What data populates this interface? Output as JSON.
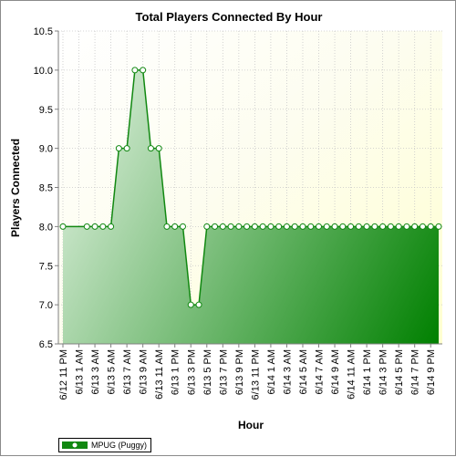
{
  "chart_data": {
    "type": "area",
    "title": "Total Players Connected By Hour",
    "xlabel": "Hour",
    "ylabel": "Players Connected",
    "ylim": [
      6.5,
      10.5
    ],
    "y_ticks": [
      "6.5",
      "7.0",
      "7.5",
      "8.0",
      "8.5",
      "9.0",
      "9.5",
      "10.0",
      "10.5"
    ],
    "x_start_label": "6/12 11 PM",
    "x_labels": [
      "6/12 11 PM",
      "6/13 1 AM",
      "6/13 3 AM",
      "6/13 5 AM",
      "6/13 7 AM",
      "6/13 9 AM",
      "6/13 11 AM",
      "6/13 1 PM",
      "6/13 3 PM",
      "6/13 5 PM",
      "6/13 7 PM",
      "6/13 9 PM",
      "6/13 11 PM",
      "6/14 1 AM",
      "6/14 3 AM",
      "6/14 5 AM",
      "6/14 7 AM",
      "6/14 9 AM",
      "6/14 11 AM",
      "6/14 1 PM",
      "6/14 3 PM",
      "6/14 5 PM",
      "6/14 7 PM",
      "6/14 9 PM"
    ],
    "grid": true,
    "legend_position": "bottom-left",
    "series": [
      {
        "name": "MPUG (Puggy)",
        "color": "#118811",
        "points": [
          [
            0,
            8
          ],
          [
            3,
            8
          ],
          [
            4,
            8
          ],
          [
            5,
            8
          ],
          [
            6,
            8
          ],
          [
            7,
            9
          ],
          [
            8,
            9
          ],
          [
            9,
            10
          ],
          [
            10,
            10
          ],
          [
            11,
            9
          ],
          [
            12,
            9
          ],
          [
            13,
            8
          ],
          [
            14,
            8
          ],
          [
            15,
            8
          ],
          [
            16,
            7
          ],
          [
            17,
            7
          ],
          [
            18,
            8
          ],
          [
            19,
            8
          ],
          [
            20,
            8
          ],
          [
            21,
            8
          ],
          [
            22,
            8
          ],
          [
            23,
            8
          ],
          [
            24,
            8
          ],
          [
            25,
            8
          ],
          [
            26,
            8
          ],
          [
            27,
            8
          ],
          [
            28,
            8
          ],
          [
            29,
            8
          ],
          [
            30,
            8
          ],
          [
            31,
            8
          ],
          [
            32,
            8
          ],
          [
            33,
            8
          ],
          [
            34,
            8
          ],
          [
            35,
            8
          ],
          [
            36,
            8
          ],
          [
            37,
            8
          ],
          [
            38,
            8
          ],
          [
            39,
            8
          ],
          [
            40,
            8
          ],
          [
            41,
            8
          ],
          [
            42,
            8
          ],
          [
            43,
            8
          ],
          [
            44,
            8
          ],
          [
            45,
            8
          ],
          [
            46,
            8
          ],
          [
            47,
            8
          ]
        ]
      }
    ],
    "x_index_max": 47
  }
}
